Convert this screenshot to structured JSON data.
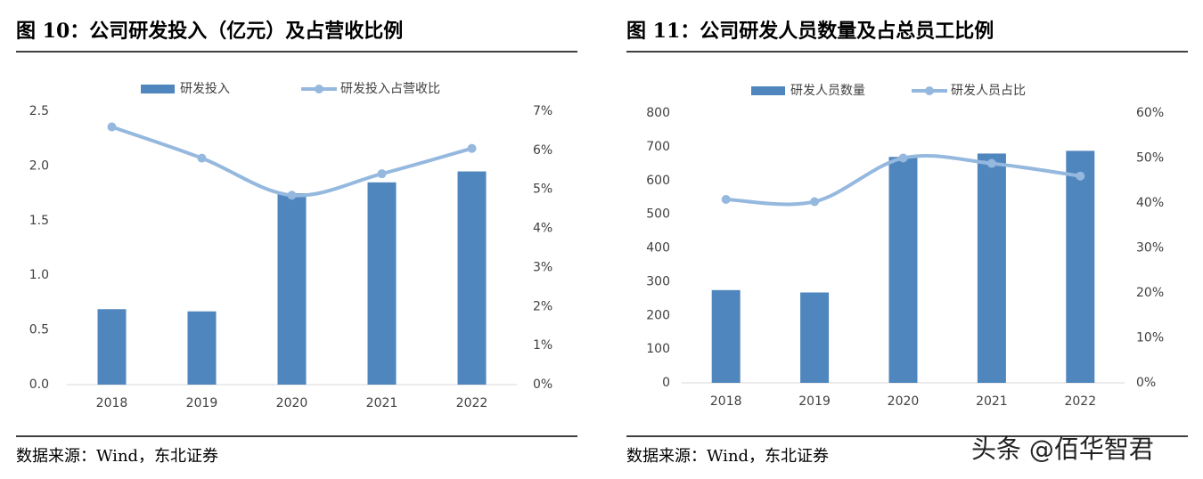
{
  "chart_data": [
    {
      "type": "bar-line",
      "title": "图 10：公司研发投入（亿元）及占营收比例",
      "source": "数据来源：Wind，东北证券",
      "categories": [
        "2018",
        "2019",
        "2020",
        "2021",
        "2022"
      ],
      "series": [
        {
          "name": "研发投入",
          "color": "#4f86bd",
          "type": "bar",
          "values": [
            0.69,
            0.67,
            1.75,
            1.85,
            1.95
          ]
        },
        {
          "name": "研发投入占营收比",
          "color": "#95b8de",
          "type": "line",
          "axis": "y2",
          "values": [
            6.6,
            5.8,
            4.85,
            5.4,
            6.05
          ]
        }
      ],
      "ylim": [
        0,
        2.5
      ],
      "yticks": [
        {
          "value": 0,
          "label": "0.0"
        },
        0.5,
        {
          "value": 1,
          "label": "1.0"
        },
        1.5,
        {
          "value": 2,
          "label": "2.0"
        },
        2.5
      ],
      "y2lim": [
        0,
        7
      ],
      "y2ticks": [
        {
          "value": 0,
          "label": "0%"
        },
        {
          "value": 1,
          "label": "1%"
        },
        {
          "value": 2,
          "label": "2%"
        },
        {
          "value": 3,
          "label": "3%"
        },
        {
          "value": 4,
          "label": "4%"
        },
        {
          "value": 5,
          "label": "5%"
        },
        {
          "value": 6,
          "label": "6%"
        },
        {
          "value": 7,
          "label": "7%"
        }
      ]
    },
    {
      "type": "bar-line",
      "title": "图 11：公司研发人员数量及占总员工比例",
      "source": "数据来源：Wind，东北证券",
      "categories": [
        "2018",
        "2019",
        "2020",
        "2021",
        "2022"
      ],
      "series": [
        {
          "name": "研发人员数量",
          "color": "#4f86bd",
          "type": "bar",
          "values": [
            275,
            268,
            670,
            680,
            688
          ]
        },
        {
          "name": "研发人员占比",
          "color": "#95b8de",
          "type": "line",
          "axis": "y2",
          "values": [
            40.8,
            40.3,
            50,
            48.8,
            46
          ]
        }
      ],
      "ylim": [
        0,
        800
      ],
      "yticks": [
        0,
        100,
        200,
        300,
        400,
        500,
        600,
        700,
        800
      ],
      "y2lim": [
        0,
        60
      ],
      "y2ticks": [
        {
          "value": 0,
          "label": "0%"
        },
        {
          "value": 10,
          "label": "10%"
        },
        {
          "value": 20,
          "label": "20%"
        },
        {
          "value": 30,
          "label": "30%"
        },
        {
          "value": 40,
          "label": "40%"
        },
        {
          "value": 50,
          "label": "50%"
        },
        {
          "value": 60,
          "label": "60%"
        }
      ]
    }
  ],
  "watermark": "头条 @佰华智君"
}
